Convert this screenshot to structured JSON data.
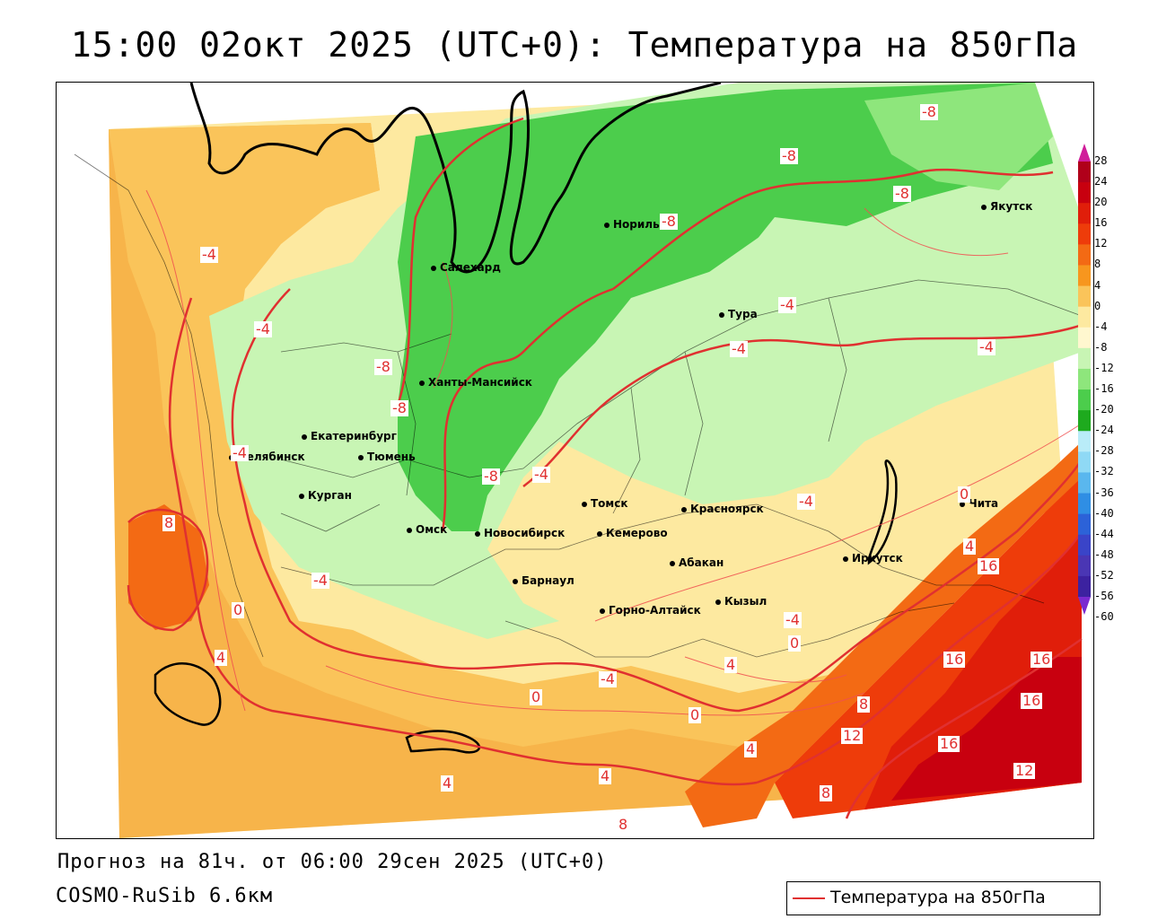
{
  "title": "15:00 02окт 2025 (UTC+0): Температура на 850гПа",
  "footer": {
    "forecast": "Прогноз на 81ч. от 06:00 29сен 2025 (UTC+0)",
    "model": "COSMO-RuSib 6.6км"
  },
  "legend": {
    "label": "Температура на 850гПа",
    "line_color": "#e03030"
  },
  "colorbar": {
    "ticks": [
      "28",
      "24",
      "20",
      "16",
      "12",
      "8",
      "4",
      "0",
      "-4",
      "-8",
      "-12",
      "-16",
      "-20",
      "-24",
      "-28",
      "-32",
      "-36",
      "-40",
      "-44",
      "-48",
      "-52",
      "-56",
      "-60"
    ],
    "colors": [
      "#b0001a",
      "#c8000f",
      "#e01e0a",
      "#ee3c0a",
      "#f36a14",
      "#f7961e",
      "#fac45a",
      "#fde9a0",
      "#fff7cf",
      "#c8f5b4",
      "#8ee67c",
      "#4ccd4c",
      "#1eaa1e",
      "#b9ecf8",
      "#8fd9f5",
      "#5ab7ee",
      "#2f8ee4",
      "#2c62d8",
      "#3a44c8",
      "#4a36b4",
      "#3c22a0",
      "#2c148a",
      "#6020a0"
    ]
  },
  "cities": [
    {
      "name": "Якутск"
    },
    {
      "name": "Норильск"
    },
    {
      "name": "Салехард"
    },
    {
      "name": "Тура"
    },
    {
      "name": "Ханты-Мансийск"
    },
    {
      "name": "Екатеринбург"
    },
    {
      "name": "Тюмень"
    },
    {
      "name": "Челябинск"
    },
    {
      "name": "Курган"
    },
    {
      "name": "Омск"
    },
    {
      "name": "Новосибирск"
    },
    {
      "name": "Томск"
    },
    {
      "name": "Кемерово"
    },
    {
      "name": "Красноярск"
    },
    {
      "name": "Абакан"
    },
    {
      "name": "Барнаул"
    },
    {
      "name": "Горно-Алтайск"
    },
    {
      "name": "Кызыл"
    },
    {
      "name": "Иркутск"
    },
    {
      "name": "Чита"
    }
  ],
  "contour_labels": [
    "-8",
    "-8",
    "-8",
    "-8",
    "-4",
    "-4",
    "-4",
    "-4",
    "-4",
    "-4",
    "-4",
    "-4",
    "0",
    "0",
    "0",
    "0",
    "4",
    "4",
    "4",
    "4",
    "8",
    "8",
    "8",
    "12",
    "12",
    "16",
    "16",
    "16",
    "16",
    "-8",
    "-8",
    "-8",
    "-4",
    "-4",
    "0",
    "4",
    "8",
    "4",
    "16",
    "-4"
  ]
}
